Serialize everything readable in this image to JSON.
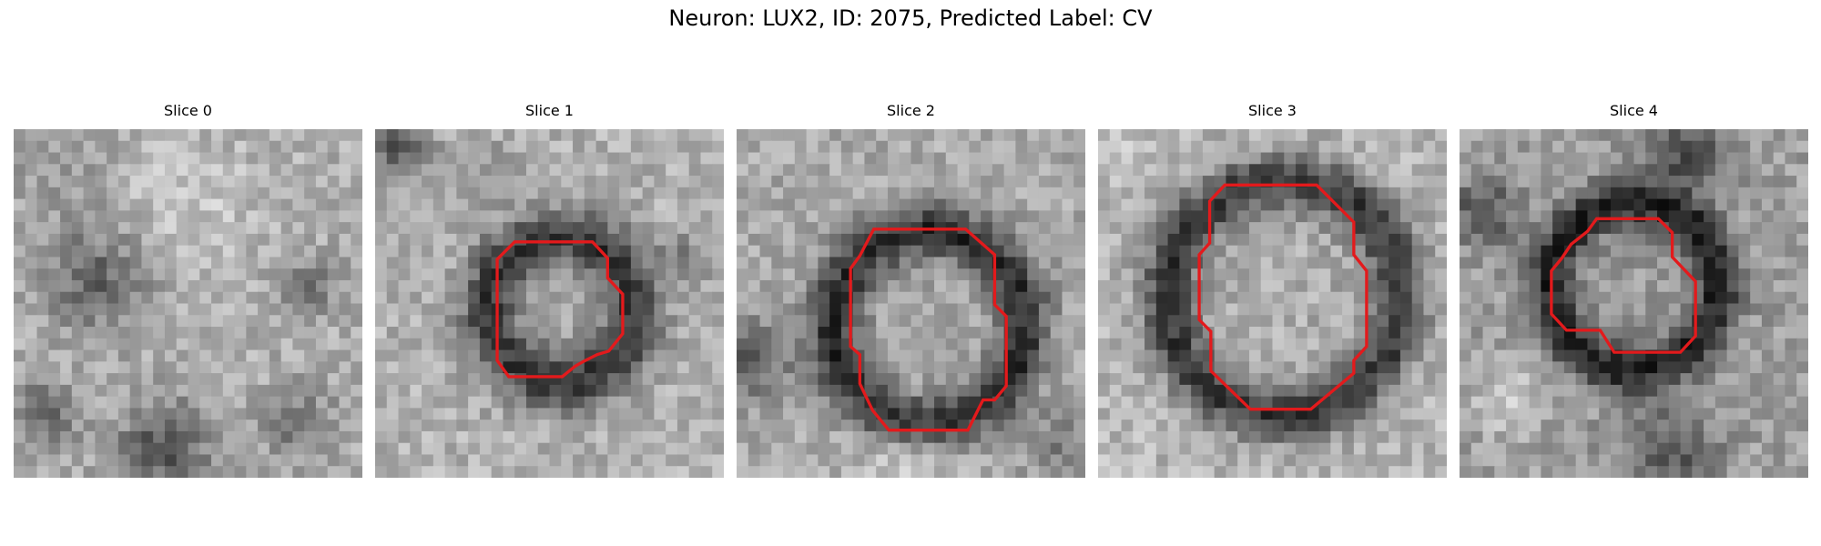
{
  "figure": {
    "title": "Neuron: LUX2, ID: 2075, Predicted Label: CV",
    "colors": {
      "contour": "#e31a1c",
      "background": "#ffffff"
    }
  },
  "slices": [
    {
      "title": "Slice 0",
      "has_contour": false
    },
    {
      "title": "Slice 1",
      "has_contour": true
    },
    {
      "title": "Slice 2",
      "has_contour": true
    },
    {
      "title": "Slice 3",
      "has_contour": true
    },
    {
      "title": "Slice 4",
      "has_contour": true
    }
  ]
}
